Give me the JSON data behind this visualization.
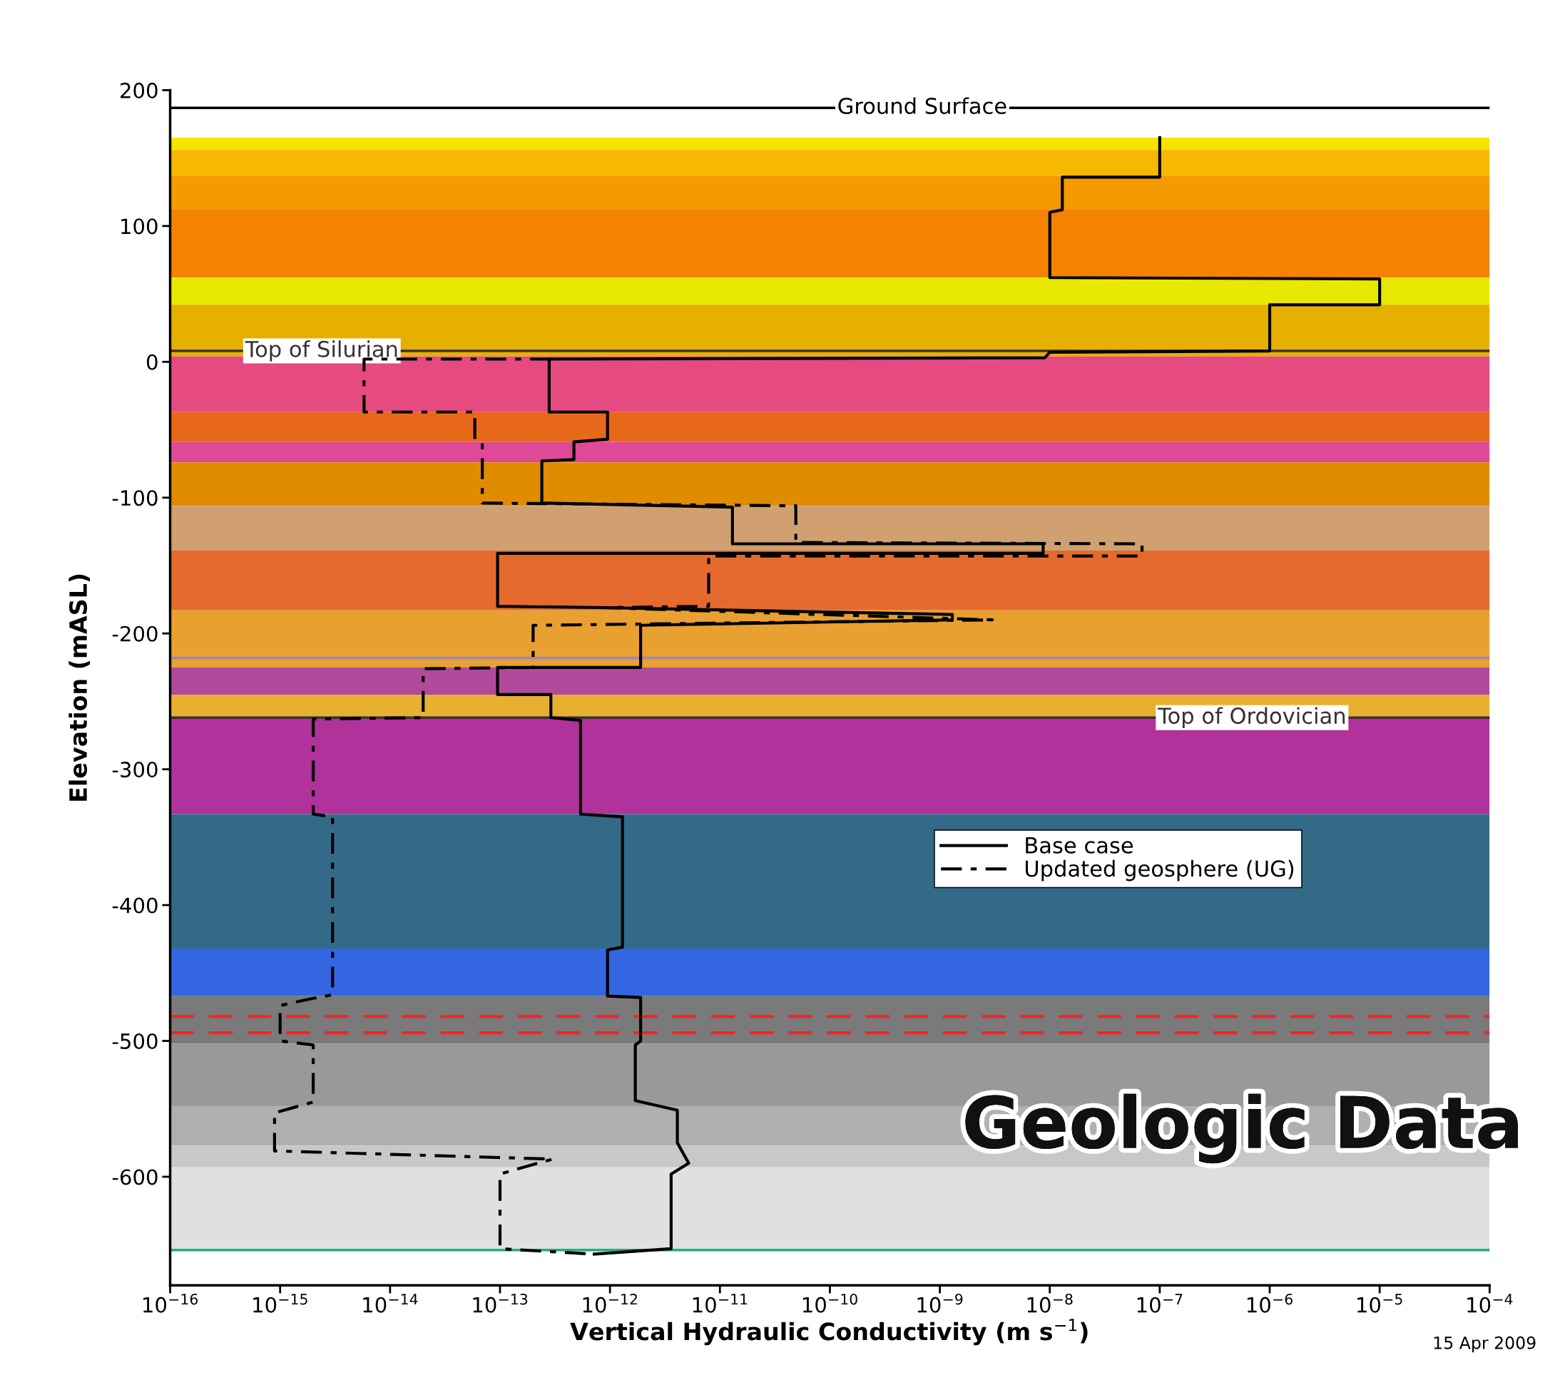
{
  "chart_data": {
    "type": "line",
    "xlabel": "Vertical Hydraulic Conductivity (m s$^{−1}$)",
    "ylabel": "Elevation (mASL)",
    "log": "x",
    "xlim": [
      1e-16,
      0.0001
    ],
    "ylim": [
      -680,
      200
    ],
    "xticks": [
      {
        "value": 1e-16,
        "label": "10$^{−16}$"
      },
      {
        "value": 1e-15,
        "label": "10$^{−15}$"
      },
      {
        "value": 1e-14,
        "label": "10$^{−14}$"
      },
      {
        "value": 1e-13,
        "label": "10$^{−13}$"
      },
      {
        "value": 1e-12,
        "label": "10$^{−12}$"
      },
      {
        "value": 1e-11,
        "label": "10$^{−11}$"
      },
      {
        "value": 1e-10,
        "label": "10$^{−10}$"
      },
      {
        "value": 1e-09,
        "label": "10$^{−9}$"
      },
      {
        "value": 1e-08,
        "label": "10$^{−8}$"
      },
      {
        "value": 1e-07,
        "label": "10$^{−7}$"
      },
      {
        "value": 1e-06,
        "label": "10$^{−6}$"
      },
      {
        "value": 1e-05,
        "label": "10$^{−5}$"
      },
      {
        "value": 0.0001,
        "label": "10$^{−4}$"
      }
    ],
    "yticks": [
      200,
      100,
      0,
      -100,
      -200,
      -300,
      -400,
      -500,
      -600
    ],
    "grid": false,
    "legend": "right",
    "series": [
      {
        "name": "Base case",
        "color": "#000000",
        "line_style": "solid",
        "x": [
          1e-07,
          1e-07,
          1.3e-08,
          1.3e-08,
          1e-08,
          1e-08,
          1e-05,
          1e-05,
          1e-06,
          1e-06,
          1e-08,
          9e-09,
          2.8e-13,
          2.8e-13,
          9.5e-13,
          9.5e-13,
          4.7e-13,
          4.7e-13,
          2.4e-13,
          2.4e-13,
          1.3e-11,
          1.3e-11,
          8.7e-09,
          8.7e-09,
          9.5e-14,
          9.5e-14,
          8.9e-13,
          1.3e-09,
          1.3e-09,
          1.9e-12,
          1.9e-12,
          9.5e-14,
          9.5e-14,
          2.9e-13,
          2.9e-13,
          5.4e-13,
          5.4e-13,
          1.3e-12,
          1.3e-12,
          9.5e-13,
          9.5e-13,
          1.9e-12,
          1.9e-12,
          1.7e-12,
          1.7e-12,
          4.1e-12,
          4.1e-12,
          5.2e-12,
          3.6e-12,
          3.6e-12,
          7.2e-13
        ],
        "values": [
          165,
          136,
          136,
          112,
          110,
          62,
          61,
          42,
          42,
          8,
          7,
          3,
          2,
          -37,
          -37,
          -57,
          -59,
          -72,
          -73,
          -104,
          -107,
          -134,
          -134,
          -141,
          -141,
          -180,
          -181,
          -186,
          -190,
          -194,
          -225,
          -225,
          -245,
          -245,
          -262,
          -264,
          -333,
          -335,
          -431,
          -433,
          -467,
          -468,
          -500,
          -503,
          -544,
          -551,
          -575,
          -590,
          -598,
          -653,
          -657
        ]
      },
      {
        "name": "Updated geosphere (UG)",
        "color": "#000000",
        "line_style": "dashed",
        "x": [
          2.9e-13,
          5.8e-15,
          5.8e-15,
          5.9e-14,
          5.9e-14,
          6.9e-14,
          6.9e-14,
          4.9e-11,
          4.9e-11,
          6.9e-08,
          6.9e-08,
          7.9e-12,
          7.9e-12,
          8.9e-13,
          3e-09,
          2e-13,
          2e-13,
          2e-14,
          2e-14,
          2e-15,
          2e-15,
          3e-15,
          3e-15,
          1.9e-15,
          1e-15,
          1e-15,
          2e-15,
          2e-15,
          8.9e-16,
          8.9e-16,
          3e-13,
          1e-13,
          1e-13,
          7.2e-13
        ],
        "values": [
          2,
          2,
          -37,
          -37,
          -57,
          -60,
          -104,
          -106,
          -133,
          -134,
          -143,
          -143,
          -180,
          -181,
          -190,
          -194,
          -225,
          -226,
          -262,
          -263,
          -333,
          -335,
          -466,
          -469,
          -474,
          -500,
          -503,
          -545,
          -553,
          -581,
          -587,
          -598,
          -653,
          -657
        ]
      }
    ],
    "bands": [
      {
        "axis": "y",
        "from": 156,
        "to": 165,
        "color": "#f5e400"
      },
      {
        "axis": "y",
        "from": 137,
        "to": 156,
        "color": "#f6b800"
      },
      {
        "axis": "y",
        "from": 112,
        "to": 137,
        "color": "#f59a00"
      },
      {
        "axis": "y",
        "from": 62,
        "to": 112,
        "color": "#f58200"
      },
      {
        "axis": "y",
        "from": 42,
        "to": 62,
        "color": "#e8e800"
      },
      {
        "axis": "y",
        "from": 4,
        "to": 42,
        "color": "#e6b000"
      },
      {
        "axis": "y",
        "from": -37,
        "to": 4,
        "color": "#e54a80"
      },
      {
        "axis": "y",
        "from": -59,
        "to": -37,
        "color": "#e8681a"
      },
      {
        "axis": "y",
        "from": -74,
        "to": -59,
        "color": "#e04898"
      },
      {
        "axis": "y",
        "from": -106,
        "to": -74,
        "color": "#e08c00"
      },
      {
        "axis": "y",
        "from": -139,
        "to": -106,
        "color": "#d0a070"
      },
      {
        "axis": "y",
        "from": -183,
        "to": -139,
        "color": "#e56a2e"
      },
      {
        "axis": "y",
        "from": -225,
        "to": -183,
        "color": "#e8a030"
      },
      {
        "axis": "y",
        "from": -245,
        "to": -225,
        "color": "#b04a9a"
      },
      {
        "axis": "y",
        "from": -262,
        "to": -245,
        "color": "#e8b030"
      },
      {
        "axis": "y",
        "from": -333,
        "to": -262,
        "color": "#b0329a"
      },
      {
        "axis": "y",
        "from": -432,
        "to": -333,
        "color": "#336a88"
      },
      {
        "axis": "y",
        "from": -467,
        "to": -432,
        "color": "#3366e0"
      },
      {
        "axis": "y",
        "from": -502,
        "to": -467,
        "color": "#7a7a7a"
      },
      {
        "axis": "y",
        "from": -548,
        "to": -502,
        "color": "#999999"
      },
      {
        "axis": "y",
        "from": -577,
        "to": -548,
        "color": "#b0b0b0"
      },
      {
        "axis": "y",
        "from": -593,
        "to": -577,
        "color": "#c8c8c8"
      },
      {
        "axis": "y",
        "from": -655,
        "to": -593,
        "color": "#e0e0e0"
      }
    ],
    "ref_lines": [
      {
        "axis": "y",
        "value": 187,
        "label": "Ground Surface",
        "color": "#000000",
        "line_style": "solid"
      },
      {
        "axis": "y",
        "value": 8,
        "label": "Top of Silurian",
        "color": "#3a3030",
        "line_style": "solid"
      },
      {
        "axis": "y",
        "value": -262,
        "label": "Top of Ordovician",
        "color": "#3a3030",
        "line_style": "solid"
      },
      {
        "axis": "y",
        "value": -218,
        "color": "#9a88b0",
        "line_style": "solid"
      },
      {
        "axis": "y",
        "value": -482,
        "color": "#ff2020",
        "line_style": "dashed"
      },
      {
        "axis": "y",
        "value": -494,
        "color": "#ff2020",
        "line_style": "dashed"
      },
      {
        "axis": "y",
        "value": -654,
        "color": "#20b080",
        "line_style": "solid"
      }
    ],
    "annotations": [
      "Geologic Data",
      "15 Apr 2009"
    ]
  }
}
